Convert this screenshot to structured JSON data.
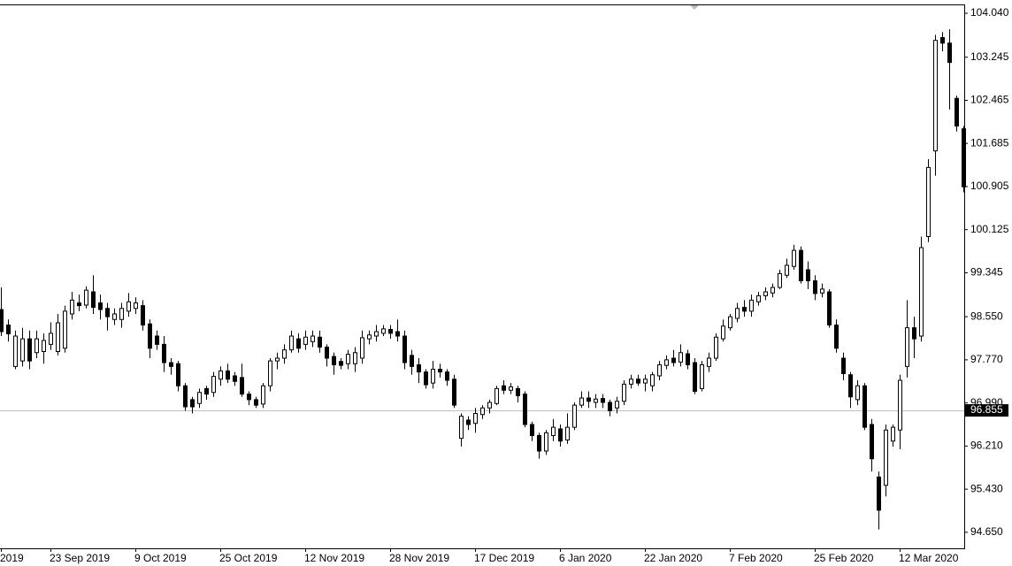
{
  "chart_data": {
    "type": "candlestick",
    "up_color": "#ffffff",
    "down_color": "#000000",
    "ylim": [
      94.36,
      104.2
    ],
    "yticks": [
      {
        "value": 104.04,
        "label": "104.040"
      },
      103.245,
      102.465,
      101.685,
      100.905,
      100.125,
      99.345,
      {
        "value": 98.55,
        "label": "98.550"
      },
      {
        "value": 97.77,
        "label": "97.770"
      },
      {
        "value": 96.99,
        "label": "96.990"
      },
      {
        "value": 96.21,
        "label": "96.210"
      },
      {
        "value": 95.43,
        "label": "95.430"
      },
      {
        "value": 94.65,
        "label": "94.650"
      }
    ],
    "grid": false,
    "current_price": 96.855,
    "categories": [
      "2019",
      null,
      null,
      null,
      null,
      null,
      null,
      "23 Sep 2019",
      null,
      null,
      null,
      null,
      null,
      null,
      null,
      null,
      null,
      null,
      null,
      "9 Oct 2019",
      null,
      null,
      null,
      null,
      null,
      null,
      null,
      null,
      null,
      null,
      null,
      "25 Oct 2019",
      null,
      null,
      null,
      null,
      null,
      null,
      null,
      null,
      null,
      null,
      null,
      "12 Nov 2019",
      null,
      null,
      null,
      null,
      null,
      null,
      null,
      null,
      null,
      null,
      null,
      "28 Nov 2019",
      null,
      null,
      null,
      null,
      null,
      null,
      null,
      null,
      null,
      null,
      null,
      "17 Dec 2019",
      null,
      null,
      null,
      null,
      null,
      null,
      null,
      null,
      null,
      null,
      null,
      "6 Jan 2020",
      null,
      null,
      null,
      null,
      null,
      null,
      null,
      null,
      null,
      null,
      null,
      "22 Jan 2020",
      null,
      null,
      null,
      null,
      null,
      null,
      null,
      null,
      null,
      null,
      null,
      "7 Feb 2020",
      null,
      null,
      null,
      null,
      null,
      null,
      null,
      null,
      null,
      null,
      null,
      "25 Feb 2020",
      null,
      null,
      null,
      null,
      null,
      null,
      null,
      null,
      null,
      null,
      null,
      "12 Mar 2020",
      null,
      null,
      null,
      null,
      null,
      null,
      null,
      null,
      null
    ],
    "open": [
      98.68,
      98.4,
      97.65,
      97.75,
      98.15,
      97.9,
      97.92,
      98.05,
      97.92,
      97.98,
      98.6,
      98.8,
      98.76,
      99.0,
      98.8,
      98.7,
      98.5,
      98.5,
      98.65,
      98.7,
      98.75,
      98.42,
      98.2,
      98.05,
      97.72,
      97.7,
      97.3,
      97.05,
      96.98,
      97.25,
      97.18,
      97.42,
      97.57,
      97.48,
      97.45,
      97.15,
      97.05,
      96.97,
      97.3,
      97.75,
      97.8,
      97.95,
      98.15,
      98.05,
      98.1,
      98.18,
      98.0,
      97.83,
      97.74,
      97.7,
      97.7,
      97.8,
      98.15,
      98.2,
      98.25,
      98.32,
      98.28,
      98.2,
      97.85,
      97.68,
      97.55,
      97.35,
      97.6,
      97.55,
      97.42,
      96.35,
      96.68,
      96.62,
      96.78,
      96.9,
      96.98,
      97.3,
      97.22,
      97.25,
      97.15,
      96.6,
      96.4,
      96.12,
      96.4,
      96.52,
      96.32,
      96.55,
      96.95,
      97.08,
      97.0,
      97.07,
      97.0,
      96.9,
      97.02,
      97.33,
      97.42,
      97.35,
      97.3,
      97.48,
      97.67,
      97.8,
      97.73,
      97.88,
      97.72,
      97.25,
      97.65,
      97.8,
      98.15,
      98.35,
      98.52,
      98.72,
      98.65,
      98.82,
      98.93,
      98.98,
      99.08,
      99.3,
      99.46,
      99.75,
      99.4,
      99.2,
      98.98,
      99.0,
      98.4,
      97.8,
      97.5,
      97.05,
      97.3,
      96.6,
      95.65,
      95.5,
      96.3,
      96.5,
      97.65,
      98.35,
      98.2,
      100.0,
      101.55,
      103.6,
      103.5,
      102.5,
      101.95
    ],
    "high": [
      99.08,
      98.5,
      98.3,
      98.35,
      98.3,
      98.3,
      98.25,
      98.45,
      98.6,
      98.75,
      99.0,
      98.95,
      99.1,
      99.3,
      98.95,
      98.8,
      98.7,
      98.8,
      98.98,
      98.9,
      98.85,
      98.5,
      98.3,
      98.2,
      97.8,
      97.75,
      97.35,
      97.1,
      97.25,
      97.3,
      97.55,
      97.65,
      97.7,
      97.55,
      97.7,
      97.2,
      97.1,
      97.35,
      97.8,
      97.9,
      98.05,
      98.3,
      98.25,
      98.3,
      98.3,
      98.3,
      98.05,
      97.9,
      97.8,
      97.95,
      98.0,
      98.3,
      98.3,
      98.4,
      98.4,
      98.4,
      98.5,
      98.3,
      97.95,
      97.8,
      97.6,
      97.75,
      97.7,
      97.6,
      97.5,
      96.8,
      96.75,
      96.9,
      96.95,
      97.05,
      97.3,
      97.4,
      97.35,
      97.3,
      97.2,
      96.65,
      96.45,
      96.5,
      96.7,
      96.6,
      96.8,
      97.0,
      97.2,
      97.2,
      97.15,
      97.15,
      97.05,
      97.1,
      97.4,
      97.5,
      97.5,
      97.5,
      97.55,
      97.75,
      97.85,
      97.95,
      98.05,
      97.95,
      97.8,
      97.75,
      97.9,
      98.25,
      98.5,
      98.6,
      98.8,
      98.85,
      98.95,
      99.0,
      99.08,
      99.15,
      99.4,
      99.6,
      99.85,
      99.82,
      99.55,
      99.3,
      99.15,
      99.05,
      98.5,
      97.9,
      97.55,
      97.4,
      97.35,
      96.7,
      95.75,
      96.6,
      96.6,
      97.5,
      98.85,
      98.55,
      100.0,
      101.4,
      103.65,
      103.7,
      103.75,
      102.55,
      102.0
    ],
    "low": [
      98.2,
      98.1,
      97.6,
      97.65,
      97.6,
      97.8,
      97.7,
      97.95,
      97.85,
      97.9,
      98.5,
      98.65,
      98.7,
      98.6,
      98.5,
      98.3,
      98.4,
      98.35,
      98.55,
      98.6,
      98.3,
      97.8,
      97.95,
      97.55,
      97.5,
      97.2,
      96.85,
      96.8,
      96.9,
      97.05,
      97.1,
      97.3,
      97.35,
      97.3,
      97.1,
      96.95,
      96.9,
      96.9,
      97.2,
      97.6,
      97.7,
      97.9,
      97.9,
      97.95,
      98.0,
      97.9,
      97.65,
      97.5,
      97.6,
      97.6,
      97.55,
      97.7,
      98.05,
      98.1,
      98.2,
      98.15,
      98.1,
      97.6,
      97.5,
      97.35,
      97.25,
      97.25,
      97.45,
      97.3,
      96.9,
      96.2,
      96.5,
      96.45,
      96.7,
      96.8,
      96.95,
      97.15,
      97.15,
      97.0,
      96.55,
      96.3,
      95.98,
      96.05,
      96.3,
      96.2,
      96.25,
      96.5,
      96.9,
      96.9,
      96.9,
      96.9,
      96.75,
      96.8,
      96.95,
      97.25,
      97.3,
      97.2,
      97.2,
      97.4,
      97.6,
      97.65,
      97.65,
      97.6,
      97.15,
      97.2,
      97.55,
      97.75,
      98.1,
      98.3,
      98.45,
      98.55,
      98.55,
      98.75,
      98.85,
      98.9,
      99.05,
      99.25,
      99.4,
      99.15,
      99.05,
      98.85,
      98.9,
      98.35,
      97.9,
      97.4,
      96.9,
      96.95,
      96.5,
      95.75,
      94.7,
      95.3,
      96.2,
      96.15,
      97.45,
      97.8,
      98.1,
      99.9,
      101.1,
      103.35,
      102.3,
      101.9,
      100.8
    ],
    "close": [
      98.28,
      98.24,
      98.2,
      98.15,
      97.75,
      98.15,
      98.12,
      98.25,
      98.44,
      98.65,
      98.85,
      98.75,
      99.03,
      98.72,
      98.68,
      98.55,
      98.6,
      98.7,
      98.82,
      98.8,
      98.4,
      97.98,
      98.05,
      97.72,
      97.65,
      97.3,
      96.92,
      96.92,
      97.18,
      97.15,
      97.47,
      97.57,
      97.42,
      97.38,
      97.15,
      97.05,
      96.95,
      97.3,
      97.75,
      97.8,
      97.95,
      98.2,
      97.98,
      98.18,
      98.2,
      98.0,
      97.8,
      97.68,
      97.67,
      97.87,
      97.9,
      98.17,
      98.22,
      98.28,
      98.33,
      98.25,
      98.2,
      97.72,
      97.65,
      97.55,
      97.32,
      97.6,
      97.55,
      97.4,
      96.95,
      96.75,
      96.6,
      96.8,
      96.9,
      97.0,
      97.25,
      97.22,
      97.28,
      97.12,
      96.6,
      96.4,
      96.12,
      96.45,
      96.55,
      96.3,
      96.55,
      96.95,
      97.08,
      97.02,
      97.06,
      97.0,
      96.85,
      97.02,
      97.33,
      97.42,
      97.35,
      97.42,
      97.5,
      97.68,
      97.77,
      97.72,
      97.9,
      97.68,
      97.2,
      97.68,
      97.8,
      98.18,
      98.38,
      98.55,
      98.7,
      98.65,
      98.85,
      98.93,
      99.0,
      99.08,
      99.33,
      99.48,
      99.75,
      99.2,
      99.2,
      98.97,
      99.05,
      98.4,
      97.98,
      97.52,
      97.1,
      97.3,
      96.55,
      95.98,
      95.05,
      96.5,
      96.55,
      97.4,
      98.35,
      98.15,
      99.8,
      101.25,
      103.55,
      103.5,
      103.15,
      102.0,
      100.9
    ]
  }
}
